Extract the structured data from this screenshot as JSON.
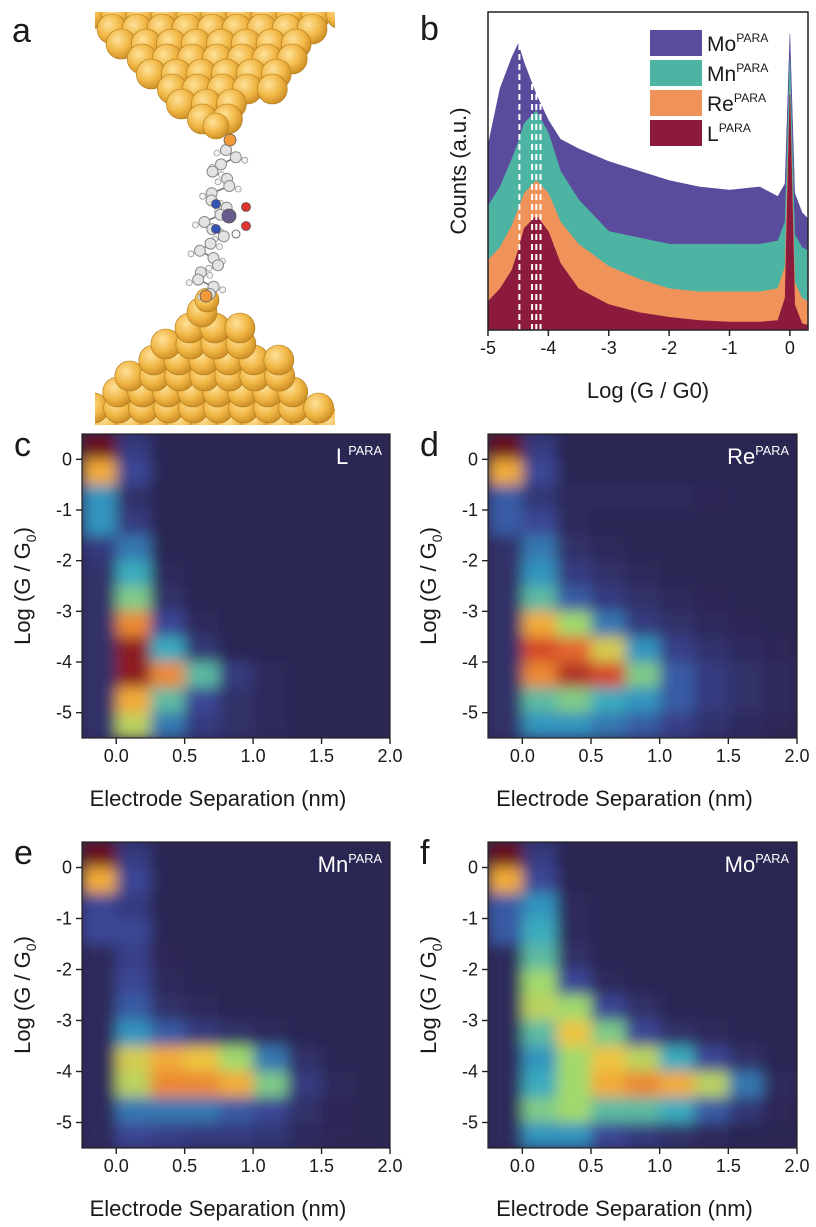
{
  "panel_a": {
    "label": "a"
  },
  "chart_data": [
    {
      "type": "area",
      "label": "b",
      "xlabel": "Log (G / G0)",
      "ylabel": "Counts (a.u.)",
      "x": [
        -5,
        -4.8,
        -4.6,
        -4.5,
        -4.4,
        -4.2,
        -4,
        -3.8,
        -3.5,
        -3,
        -2.5,
        -2,
        -1.5,
        -1,
        -0.5,
        -0.2,
        -0.08,
        0,
        0.08,
        0.2,
        0.3
      ],
      "xlim": [
        -5,
        0.3
      ],
      "xticks": [
        -5,
        -4,
        -3,
        -2,
        -1,
        0
      ],
      "ylim": [
        0,
        10
      ],
      "vlines": [
        -4.48,
        -4.27,
        -4.2,
        -4.13
      ],
      "legend": "upper right",
      "series": [
        {
          "name": "Mo",
          "name_sup": "PARA",
          "color": "#5b4b9d",
          "values": [
            5.8,
            7.6,
            8.6,
            9.0,
            8.4,
            7.4,
            6.6,
            6.0,
            5.7,
            5.3,
            5.0,
            4.7,
            4.5,
            4.4,
            4.5,
            4.2,
            4.6,
            9.3,
            4.3,
            3.7,
            3.5
          ]
        },
        {
          "name": "Mn",
          "name_sup": "PARA",
          "color": "#4db3a3",
          "values": [
            3.9,
            4.5,
            5.4,
            5.9,
            6.5,
            6.9,
            6.2,
            5.0,
            4.1,
            3.1,
            2.9,
            2.7,
            2.7,
            2.7,
            2.7,
            2.8,
            3.4,
            8.5,
            3.0,
            2.6,
            2.5
          ]
        },
        {
          "name": "Re",
          "name_sup": "PARA",
          "color": "#f0935a",
          "values": [
            2.2,
            2.6,
            3.3,
            3.8,
            4.3,
            4.7,
            4.3,
            3.4,
            2.7,
            2.0,
            1.6,
            1.3,
            1.2,
            1.2,
            1.2,
            1.3,
            2.0,
            7.5,
            1.5,
            1.0,
            0.9
          ]
        },
        {
          "name": "L",
          "name_sup": "PARA",
          "color": "#8c1a3c",
          "values": [
            0.9,
            1.3,
            1.9,
            2.5,
            3.2,
            3.6,
            3.1,
            2.1,
            1.3,
            0.8,
            0.55,
            0.4,
            0.3,
            0.25,
            0.25,
            0.3,
            1.0,
            7.4,
            0.8,
            0.2,
            0.15
          ]
        }
      ]
    },
    {
      "type": "heatmap",
      "label": "c",
      "inset": "L",
      "inset_sup": "PARA",
      "xlabel": "Electrode Separation (nm)",
      "ylabel": "Log (G / G",
      "ylabel_sub": "0",
      "ylabel_end": ")",
      "xlim": [
        -0.25,
        2
      ],
      "ylim": [
        -5.5,
        0.5
      ],
      "xticks": [
        {
          "value": 0,
          "label": "0.0"
        },
        {
          "value": 0.5,
          "label": "0.5"
        },
        {
          "value": 1,
          "label": "1.0"
        },
        {
          "value": 1.5,
          "label": "1.5"
        },
        {
          "value": 2,
          "label": "2.0"
        }
      ],
      "yticks": [
        0,
        -1,
        -2,
        -3,
        -4,
        -5
      ],
      "colormap": [
        "#2c2553",
        "#3b4a9c",
        "#2fa6c6",
        "#a2d96c",
        "#f6c23c",
        "#e0502a",
        "#6a0a1e"
      ],
      "x": [
        -0.125,
        0.125,
        0.375,
        0.625,
        0.875,
        1.125,
        1.375,
        1.625,
        1.875
      ],
      "y": [
        0.25,
        -0.25,
        -0.75,
        -1.25,
        -1.75,
        -2.25,
        -2.75,
        -3.25,
        -3.75,
        -4.25,
        -4.75,
        -5.25
      ],
      "values": [
        [
          1,
          0.1,
          0,
          0,
          0,
          0,
          0,
          0,
          0
        ],
        [
          0.7,
          0.15,
          0,
          0,
          0,
          0,
          0,
          0,
          0
        ],
        [
          0.3,
          0.05,
          0,
          0,
          0,
          0,
          0,
          0,
          0
        ],
        [
          0.3,
          0.1,
          0,
          0,
          0,
          0,
          0,
          0,
          0
        ],
        [
          0.1,
          0.25,
          0,
          0,
          0,
          0,
          0,
          0,
          0
        ],
        [
          0.05,
          0.35,
          0.02,
          0,
          0,
          0,
          0,
          0,
          0
        ],
        [
          0.05,
          0.45,
          0.05,
          0,
          0,
          0,
          0,
          0,
          0
        ],
        [
          0.05,
          0.75,
          0.15,
          0.02,
          0,
          0,
          0,
          0,
          0
        ],
        [
          0.05,
          0.95,
          0.35,
          0.08,
          0,
          0,
          0,
          0,
          0
        ],
        [
          0.05,
          0.95,
          0.75,
          0.4,
          0.1,
          0.02,
          0,
          0,
          0
        ],
        [
          0.05,
          0.7,
          0.4,
          0.15,
          0.05,
          0.02,
          0,
          0,
          0
        ],
        [
          0.05,
          0.55,
          0.25,
          0.1,
          0.05,
          0.02,
          0,
          0,
          0
        ]
      ]
    },
    {
      "type": "heatmap",
      "label": "d",
      "inset": "Re",
      "inset_sup": "PARA",
      "xlabel": "Electrode Separation (nm)",
      "ylabel": "Log (G / G",
      "ylabel_sub": "0",
      "ylabel_end": ")",
      "xlim": [
        -0.25,
        2
      ],
      "ylim": [
        -5.5,
        0.5
      ],
      "xticks": [
        {
          "value": 0,
          "label": "0.0"
        },
        {
          "value": 0.5,
          "label": "0.5"
        },
        {
          "value": 1,
          "label": "1.0"
        },
        {
          "value": 1.5,
          "label": "1.5"
        },
        {
          "value": 2,
          "label": "2.0"
        }
      ],
      "yticks": [
        0,
        -1,
        -2,
        -3,
        -4,
        -5
      ],
      "colormap": [
        "#2c2553",
        "#3b4a9c",
        "#2fa6c6",
        "#a2d96c",
        "#f6c23c",
        "#e0502a",
        "#6a0a1e"
      ],
      "x": [
        -0.125,
        0.125,
        0.375,
        0.625,
        0.875,
        1.125,
        1.375,
        1.625,
        1.875
      ],
      "y": [
        0.25,
        -0.25,
        -0.75,
        -1.25,
        -1.75,
        -2.25,
        -2.75,
        -3.25,
        -3.75,
        -4.25,
        -4.75,
        -5.25
      ],
      "values": [
        [
          1,
          0.1,
          0,
          0,
          0,
          0,
          0,
          0,
          0
        ],
        [
          0.7,
          0.15,
          0,
          0,
          0,
          0,
          0,
          0,
          0
        ],
        [
          0.2,
          0.08,
          0.02,
          0.02,
          0.02,
          0.02,
          0.01,
          0,
          0
        ],
        [
          0.2,
          0.15,
          0.02,
          0,
          0,
          0,
          0,
          0,
          0
        ],
        [
          0.05,
          0.25,
          0.05,
          0.02,
          0,
          0,
          0,
          0,
          0
        ],
        [
          0.05,
          0.3,
          0.1,
          0.05,
          0.02,
          0,
          0,
          0,
          0
        ],
        [
          0.05,
          0.4,
          0.2,
          0.1,
          0.05,
          0.02,
          0.01,
          0,
          0
        ],
        [
          0.05,
          0.7,
          0.5,
          0.25,
          0.1,
          0.05,
          0.02,
          0.01,
          0
        ],
        [
          0.05,
          0.85,
          0.8,
          0.6,
          0.3,
          0.12,
          0.06,
          0.03,
          0.01
        ],
        [
          0.05,
          0.75,
          0.9,
          0.85,
          0.45,
          0.2,
          0.1,
          0.05,
          0.02
        ],
        [
          0.05,
          0.4,
          0.45,
          0.35,
          0.3,
          0.2,
          0.1,
          0.05,
          0.02
        ],
        [
          0.05,
          0.3,
          0.3,
          0.25,
          0.2,
          0.12,
          0.06,
          0.03,
          0.01
        ]
      ]
    },
    {
      "type": "heatmap",
      "label": "e",
      "inset": "Mn",
      "inset_sup": "PARA",
      "xlabel": "Electrode Separation (nm)",
      "ylabel": "Log (G / G",
      "ylabel_sub": "0",
      "ylabel_end": ")",
      "xlim": [
        -0.25,
        2
      ],
      "ylim": [
        -5.5,
        0.5
      ],
      "xticks": [
        {
          "value": 0,
          "label": "0.0"
        },
        {
          "value": 0.5,
          "label": "0.5"
        },
        {
          "value": 1,
          "label": "1.0"
        },
        {
          "value": 1.5,
          "label": "1.5"
        },
        {
          "value": 2,
          "label": "2.0"
        }
      ],
      "yticks": [
        0,
        -1,
        -2,
        -3,
        -4,
        -5
      ],
      "colormap": [
        "#2c2553",
        "#3b4a9c",
        "#2fa6c6",
        "#a2d96c",
        "#f6c23c",
        "#e0502a",
        "#6a0a1e"
      ],
      "x": [
        -0.125,
        0.125,
        0.375,
        0.625,
        0.875,
        1.125,
        1.375,
        1.625,
        1.875
      ],
      "y": [
        0.25,
        -0.25,
        -0.75,
        -1.25,
        -1.75,
        -2.25,
        -2.75,
        -3.25,
        -3.75,
        -4.25,
        -4.75,
        -5.25
      ],
      "values": [
        [
          1,
          0.1,
          0,
          0,
          0,
          0,
          0,
          0,
          0
        ],
        [
          0.7,
          0.15,
          0,
          0,
          0,
          0,
          0,
          0,
          0
        ],
        [
          0.15,
          0.1,
          0,
          0,
          0,
          0,
          0,
          0,
          0
        ],
        [
          0.15,
          0.15,
          0,
          0,
          0,
          0,
          0,
          0,
          0
        ],
        [
          0.02,
          0.12,
          0.01,
          0,
          0,
          0,
          0,
          0,
          0
        ],
        [
          0.02,
          0.15,
          0.02,
          0,
          0,
          0,
          0,
          0,
          0
        ],
        [
          0.02,
          0.2,
          0.05,
          0.02,
          0,
          0,
          0,
          0,
          0
        ],
        [
          0.02,
          0.3,
          0.2,
          0.1,
          0.05,
          0.02,
          0,
          0,
          0
        ],
        [
          0.02,
          0.6,
          0.7,
          0.65,
          0.5,
          0.25,
          0.05,
          0,
          0
        ],
        [
          0.02,
          0.55,
          0.75,
          0.75,
          0.7,
          0.45,
          0.1,
          0.02,
          0
        ],
        [
          0.02,
          0.25,
          0.25,
          0.25,
          0.2,
          0.15,
          0.05,
          0.01,
          0
        ],
        [
          0.02,
          0.15,
          0.12,
          0.1,
          0.1,
          0.08,
          0.03,
          0.01,
          0
        ]
      ]
    },
    {
      "type": "heatmap",
      "label": "f",
      "inset": "Mo",
      "inset_sup": "PARA",
      "xlabel": "Electrode Separation (nm)",
      "ylabel": "Log (G / G",
      "ylabel_sub": "0",
      "ylabel_end": ")",
      "xlim": [
        -0.25,
        2
      ],
      "ylim": [
        -5.5,
        0.5
      ],
      "xticks": [
        {
          "value": 0,
          "label": "0.0"
        },
        {
          "value": 0.5,
          "label": "0.5"
        },
        {
          "value": 1,
          "label": "1.0"
        },
        {
          "value": 1.5,
          "label": "1.5"
        },
        {
          "value": 2,
          "label": "2.0"
        }
      ],
      "yticks": [
        0,
        -1,
        -2,
        -3,
        -4,
        -5
      ],
      "colormap": [
        "#2c2553",
        "#3b4a9c",
        "#2fa6c6",
        "#a2d96c",
        "#f6c23c",
        "#e0502a",
        "#6a0a1e"
      ],
      "x": [
        -0.125,
        0.125,
        0.375,
        0.625,
        0.875,
        1.125,
        1.375,
        1.625,
        1.875
      ],
      "y": [
        0.25,
        -0.25,
        -0.75,
        -1.25,
        -1.75,
        -2.25,
        -2.75,
        -3.25,
        -3.75,
        -4.25,
        -4.75,
        -5.25
      ],
      "values": [
        [
          1,
          0.1,
          0,
          0,
          0,
          0,
          0,
          0,
          0
        ],
        [
          0.7,
          0.15,
          0,
          0,
          0,
          0,
          0,
          0,
          0
        ],
        [
          0.2,
          0.3,
          0.02,
          0,
          0,
          0,
          0,
          0,
          0
        ],
        [
          0.2,
          0.35,
          0.02,
          0,
          0,
          0,
          0,
          0,
          0
        ],
        [
          0.02,
          0.4,
          0.05,
          0,
          0,
          0,
          0,
          0,
          0
        ],
        [
          0.02,
          0.5,
          0.15,
          0.02,
          0,
          0,
          0,
          0,
          0
        ],
        [
          0.02,
          0.55,
          0.5,
          0.15,
          0.05,
          0,
          0,
          0,
          0
        ],
        [
          0.02,
          0.4,
          0.65,
          0.45,
          0.15,
          0.05,
          0.02,
          0,
          0
        ],
        [
          0.02,
          0.3,
          0.5,
          0.65,
          0.55,
          0.35,
          0.15,
          0.05,
          0
        ],
        [
          0.02,
          0.35,
          0.5,
          0.7,
          0.75,
          0.7,
          0.55,
          0.25,
          0.02
        ],
        [
          0.02,
          0.45,
          0.5,
          0.4,
          0.4,
          0.35,
          0.2,
          0.08,
          0.01
        ],
        [
          0.02,
          0.3,
          0.3,
          0.15,
          0.1,
          0.05,
          0.02,
          0,
          0
        ]
      ]
    }
  ]
}
